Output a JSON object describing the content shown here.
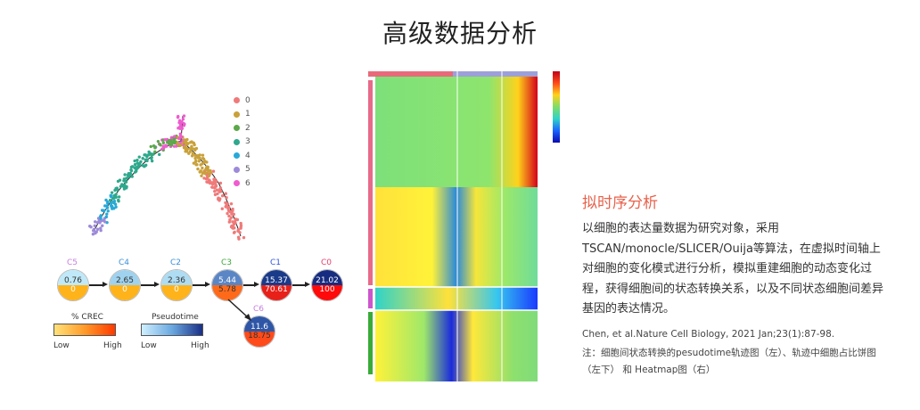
{
  "title": "高级数据分析",
  "trajectory": {
    "legend": [
      {
        "label": "0",
        "color": "#f07a7a"
      },
      {
        "label": "1",
        "color": "#c9a13a"
      },
      {
        "label": "2",
        "color": "#5ba84a"
      },
      {
        "label": "3",
        "color": "#2ea88c"
      },
      {
        "label": "4",
        "color": "#27a9d8"
      },
      {
        "label": "5",
        "color": "#9d8ad8"
      },
      {
        "label": "6",
        "color": "#ef5ccf"
      }
    ]
  },
  "pies": [
    {
      "label": "C5",
      "top": "0.76",
      "bottom": "0"
    },
    {
      "label": "C4",
      "top": "2.65",
      "bottom": "0"
    },
    {
      "label": "C2",
      "top": "2.36",
      "bottom": "0"
    },
    {
      "label": "C3",
      "top": "5.44",
      "bottom": "5.78"
    },
    {
      "label": "C1",
      "top": "15.37",
      "bottom": "70.61"
    },
    {
      "label": "C0",
      "top": "21.02",
      "bottom": "100"
    },
    {
      "label": "C6",
      "top": "11.6",
      "bottom": "18.75"
    }
  ],
  "scales": {
    "left_title": "% CREC",
    "right_title": "Pseudotime",
    "low": "Low",
    "high": "High"
  },
  "section_title": "拟时序分析",
  "description": "以细胞的表达量数据为研究对象，采用TSCAN/monocle/SLICER/Ouija等算法，在虚拟时间轴上对细胞的变化模式进行分析，模拟重建细胞的动态变化过程，获得细胞间的状态转换关系，以及不同状态细胞间差异基因的表达情况。",
  "citation": "Chen, et al.Nature Cell Biology,  2021 Jan;23(1):87-98.",
  "note": "注：细胞间状态转换的pesudotime轨迹图（左）、轨迹中细胞占比饼图（左下） 和 Heatmap图（右）"
}
